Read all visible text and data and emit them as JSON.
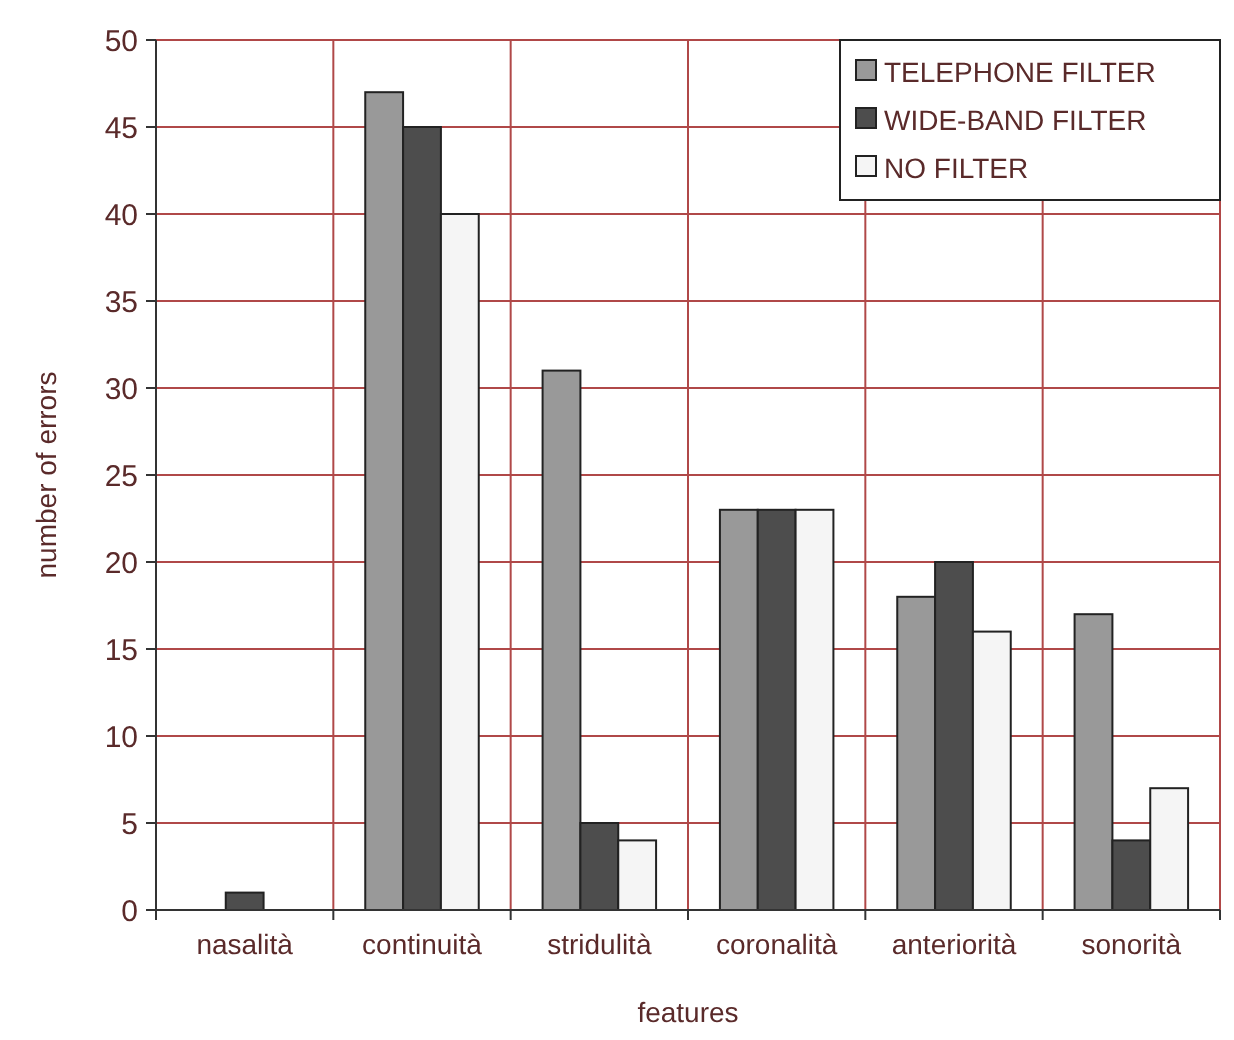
{
  "chart_data": {
    "type": "bar",
    "xlabel": "features",
    "ylabel": "number of errors",
    "categories": [
      "nasalità",
      "continuità",
      "stridulità",
      "coronalità",
      "anteriorità",
      "sonorità"
    ],
    "series": [
      {
        "name": "TELEPHONE  FILTER",
        "color": "#999999",
        "values": [
          0,
          47,
          31,
          23,
          18,
          17
        ]
      },
      {
        "name": "WIDE-BAND FILTER",
        "color": "#4d4d4d",
        "values": [
          1,
          45,
          5,
          23,
          20,
          4
        ]
      },
      {
        "name": "NO FILTER",
        "color": "#f5f5f5",
        "values": [
          0,
          40,
          4,
          23,
          16,
          7
        ]
      }
    ],
    "ylim": [
      0,
      50
    ],
    "yticks": [
      0,
      5,
      10,
      15,
      20,
      25,
      30,
      35,
      40,
      45,
      50
    ],
    "grid": true,
    "legend": "top right"
  }
}
